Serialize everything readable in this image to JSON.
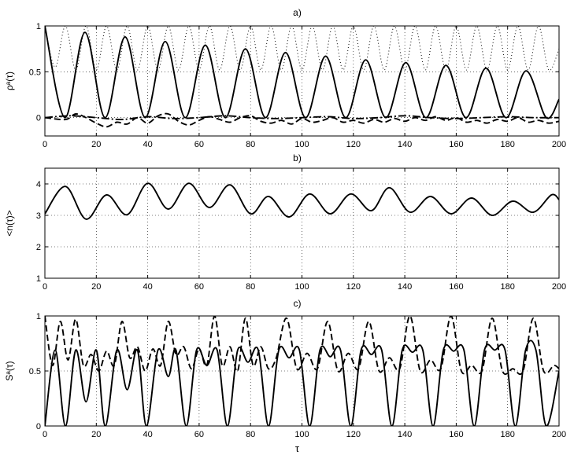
{
  "chart_data": [
    {
      "id": "a",
      "type": "line",
      "title": "a)",
      "ylabel": "ρᵃ(τ)",
      "xlabel": "",
      "xlim": [
        0,
        200
      ],
      "ylim": [
        -0.2,
        1.0
      ],
      "xticks": [
        0,
        20,
        40,
        60,
        80,
        100,
        120,
        140,
        160,
        180,
        200
      ],
      "yticks": [
        0,
        0.5,
        1
      ],
      "ytick_labels": [
        "0",
        "0.5",
        "1"
      ],
      "grid": true,
      "series": [
        {
          "style": "solid",
          "x": [
            0,
            7.8,
            15.6,
            23.4,
            31.2,
            39,
            46.8,
            54.6,
            62.4,
            70.2,
            78,
            85.8,
            93.6,
            101.4,
            109.2,
            117,
            124.8,
            132.6,
            140.4,
            148.2,
            156,
            163.8,
            171.6,
            179.4,
            187.2,
            195,
            200
          ],
          "y": [
            1.0,
            0.0,
            0.93,
            0.0,
            0.88,
            0.0,
            0.83,
            0.0,
            0.79,
            0.0,
            0.75,
            0.0,
            0.71,
            0.0,
            0.67,
            0.0,
            0.63,
            0.0,
            0.6,
            0.0,
            0.57,
            0.0,
            0.54,
            0.0,
            0.51,
            0.0,
            0.2
          ]
        },
        {
          "style": "dotted",
          "x": [
            0,
            4,
            8,
            12,
            16,
            20,
            24,
            28,
            32,
            36,
            40,
            44,
            48,
            52,
            56,
            60,
            64,
            68,
            72,
            76,
            80,
            84,
            88,
            92,
            96,
            100,
            104,
            108,
            112,
            116,
            120,
            124,
            128,
            132,
            136,
            140,
            144,
            148,
            152,
            156,
            160,
            164,
            168,
            172,
            176,
            180,
            184,
            188,
            192,
            196,
            200
          ],
          "y": [
            1.0,
            0.55,
            1.0,
            0.52,
            1.0,
            0.52,
            1.0,
            0.52,
            1.0,
            0.52,
            1.0,
            0.52,
            1.0,
            0.52,
            1.0,
            0.52,
            1.0,
            0.52,
            1.0,
            0.52,
            1.0,
            0.52,
            1.0,
            0.52,
            1.0,
            0.52,
            1.0,
            0.52,
            1.0,
            0.52,
            1.0,
            0.52,
            1.0,
            0.52,
            1.0,
            0.52,
            1.0,
            0.52,
            1.0,
            0.52,
            1.0,
            0.52,
            1.0,
            0.52,
            1.0,
            0.52,
            1.0,
            0.52,
            1.0,
            0.52,
            0.75
          ]
        },
        {
          "style": "dashed",
          "x": [
            0,
            8,
            12,
            16,
            20,
            24,
            28,
            32,
            36,
            40,
            44,
            48,
            52,
            56,
            60,
            64,
            68,
            72,
            76,
            80,
            84,
            88,
            92,
            96,
            100,
            104,
            108,
            112,
            116,
            120,
            124,
            128,
            132,
            136,
            140,
            144,
            148,
            152,
            156,
            160,
            164,
            168,
            172,
            176,
            180,
            184,
            188,
            192,
            196,
            200
          ],
          "y": [
            0.0,
            -0.02,
            0.04,
            0.0,
            -0.06,
            -0.1,
            -0.05,
            -0.07,
            0.0,
            -0.06,
            0.02,
            0.04,
            -0.04,
            -0.08,
            -0.03,
            0.01,
            -0.02,
            -0.05,
            0.0,
            0.02,
            -0.04,
            -0.06,
            -0.03,
            -0.07,
            -0.01,
            -0.05,
            -0.03,
            0.0,
            -0.05,
            -0.03,
            -0.06,
            -0.02,
            -0.05,
            -0.01,
            -0.04,
            0.0,
            -0.03,
            0.01,
            -0.03,
            0.0,
            -0.05,
            -0.03,
            -0.06,
            -0.02,
            -0.04,
            0.0,
            -0.05,
            -0.03,
            -0.06,
            -0.04
          ]
        },
        {
          "style": "dashdot",
          "x": [
            0,
            10,
            20,
            30,
            40,
            50,
            60,
            70,
            80,
            90,
            100,
            110,
            120,
            130,
            140,
            150,
            160,
            170,
            180,
            190,
            200
          ],
          "y": [
            0.0,
            0.02,
            0.0,
            -0.02,
            0.01,
            -0.01,
            0.0,
            0.02,
            0.0,
            -0.01,
            0.0,
            0.01,
            -0.01,
            0.0,
            0.02,
            0.0,
            -0.01,
            0.0,
            0.01,
            0.0,
            0.0
          ]
        }
      ]
    },
    {
      "id": "b",
      "type": "line",
      "title": "b)",
      "ylabel": "<n(τ)>",
      "xlabel": "",
      "xlim": [
        0,
        200
      ],
      "ylim": [
        1,
        4.5
      ],
      "xticks": [
        0,
        20,
        40,
        60,
        80,
        100,
        120,
        140,
        160,
        180,
        200
      ],
      "yticks": [
        1,
        2,
        3,
        4
      ],
      "ytick_labels": [
        "1",
        "2",
        "3",
        "4"
      ],
      "grid": true,
      "series": [
        {
          "style": "solid",
          "x": [
            0,
            8,
            16,
            24,
            32,
            40,
            48,
            56,
            64,
            72,
            80,
            87,
            95,
            103,
            111,
            119,
            127,
            134,
            142,
            150,
            158,
            166,
            174,
            182,
            190,
            197,
            200
          ],
          "y": [
            3.05,
            3.92,
            2.88,
            3.65,
            3.02,
            4.02,
            3.2,
            4.02,
            3.25,
            3.97,
            3.05,
            3.6,
            2.95,
            3.68,
            3.05,
            3.68,
            3.15,
            3.88,
            3.1,
            3.6,
            3.05,
            3.55,
            3.0,
            3.45,
            3.1,
            3.65,
            3.5
          ]
        }
      ]
    },
    {
      "id": "c",
      "type": "line",
      "title": "c)",
      "ylabel": "Sᵃ(τ)",
      "xlabel": "τ",
      "xlim": [
        0,
        200
      ],
      "ylim": [
        0,
        1
      ],
      "xticks": [
        0,
        20,
        40,
        60,
        80,
        100,
        120,
        140,
        160,
        180,
        200
      ],
      "yticks": [
        0,
        0.5,
        1
      ],
      "ytick_labels": [
        "0",
        "0.5",
        "1"
      ],
      "grid": true,
      "series": [
        {
          "style": "solid",
          "x": [
            0,
            4,
            8,
            12,
            16,
            20,
            23.5,
            28,
            32,
            36,
            39.5,
            44,
            48,
            51,
            55,
            59,
            63,
            67,
            71,
            75,
            79,
            83,
            87,
            91,
            95,
            99,
            103,
            107,
            111,
            115,
            119,
            123,
            127,
            131,
            135,
            139,
            143,
            147,
            151,
            155,
            159,
            163,
            167,
            171,
            175,
            179,
            183,
            187,
            191,
            195,
            200
          ],
          "y": [
            0.0,
            0.69,
            0.0,
            0.69,
            0.22,
            0.69,
            0.0,
            0.69,
            0.33,
            0.69,
            0.0,
            0.69,
            0.45,
            0.69,
            0.0,
            0.69,
            0.55,
            0.69,
            0.0,
            0.69,
            0.58,
            0.69,
            0.0,
            0.69,
            0.62,
            0.69,
            0.0,
            0.69,
            0.63,
            0.69,
            0.0,
            0.69,
            0.65,
            0.69,
            0.0,
            0.69,
            0.67,
            0.69,
            0.0,
            0.69,
            0.68,
            0.69,
            0.0,
            0.69,
            0.69,
            0.69,
            0.0,
            0.69,
            0.69,
            0.0,
            0.5
          ]
        },
        {
          "style": "dashed",
          "x": [
            0,
            3,
            6,
            9,
            12,
            15,
            18,
            21,
            24,
            27,
            30,
            33,
            36,
            39,
            42,
            45,
            48,
            51,
            54,
            57,
            60,
            63,
            66,
            69,
            72,
            75,
            78,
            81,
            84,
            87,
            90,
            94,
            98,
            102,
            106,
            110,
            114,
            118,
            122,
            126,
            130,
            134,
            138,
            142,
            146,
            150,
            154,
            158,
            162,
            166,
            170,
            174,
            178,
            182,
            186,
            190,
            194,
            198,
            200
          ],
          "y": [
            1.0,
            0.55,
            0.95,
            0.6,
            0.97,
            0.55,
            0.65,
            0.5,
            0.68,
            0.55,
            0.95,
            0.62,
            0.72,
            0.5,
            0.7,
            0.55,
            0.95,
            0.65,
            0.72,
            0.52,
            0.7,
            0.55,
            1.0,
            0.55,
            0.72,
            0.5,
            0.98,
            0.55,
            0.72,
            0.52,
            0.62,
            0.98,
            0.52,
            0.66,
            0.52,
            0.95,
            0.5,
            0.66,
            0.52,
            0.95,
            0.5,
            0.62,
            0.52,
            1.0,
            0.5,
            0.6,
            0.52,
            1.0,
            0.5,
            0.55,
            0.5,
            0.98,
            0.5,
            0.52,
            0.5,
            0.98,
            0.5,
            0.55,
            0.52
          ]
        }
      ]
    }
  ]
}
